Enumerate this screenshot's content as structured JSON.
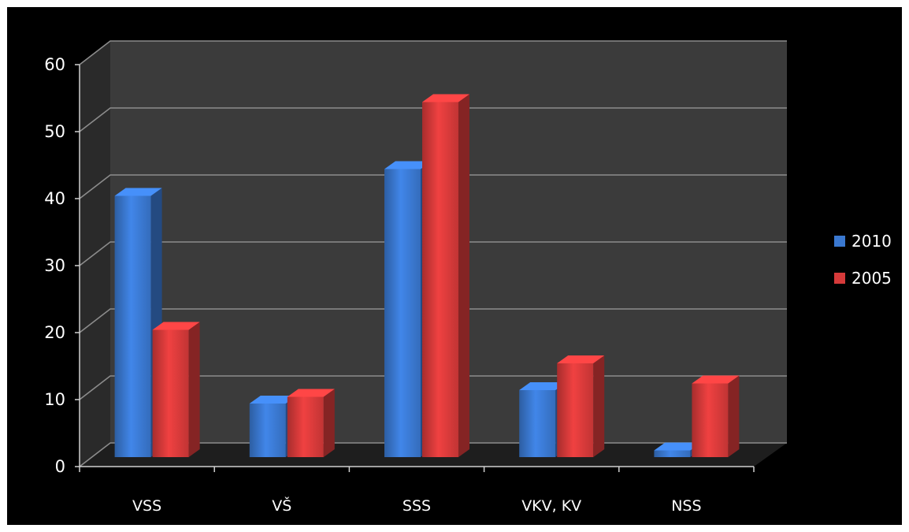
{
  "chart_data": {
    "type": "bar",
    "style": "3d-clustered-column",
    "categories": [
      "VSS",
      "VŠ",
      "SSS",
      "VKV, KV",
      "NSS"
    ],
    "series": [
      {
        "name": "2010",
        "values": [
          39,
          8,
          43,
          10,
          1
        ],
        "color": "#3a78d0"
      },
      {
        "name": "2005",
        "values": [
          19,
          9,
          53,
          14,
          11
        ],
        "color": "#d63a3a"
      }
    ],
    "ylim": [
      0,
      60
    ],
    "yticks": [
      0,
      10,
      20,
      30,
      40,
      50,
      60
    ],
    "grid": true,
    "legend": "right",
    "background": "#000000",
    "wall_color": "#3b3b3b",
    "title": "",
    "xlabel": "",
    "ylabel": ""
  }
}
